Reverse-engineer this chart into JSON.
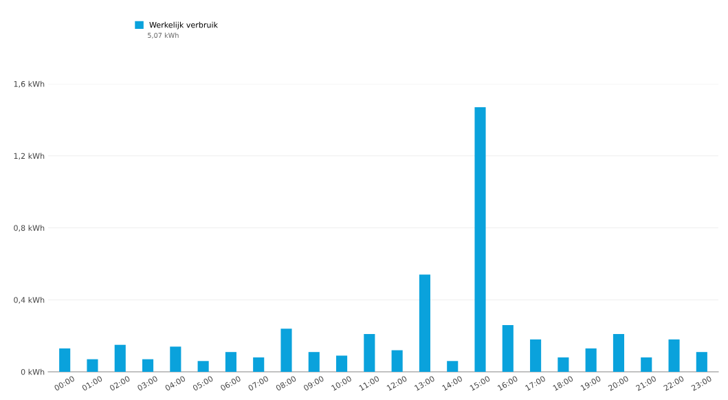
{
  "chart_data": {
    "type": "bar",
    "categories": [
      "00:00",
      "01:00",
      "02:00",
      "03:00",
      "04:00",
      "05:00",
      "06:00",
      "07:00",
      "08:00",
      "09:00",
      "10:00",
      "11:00",
      "12:00",
      "13:00",
      "14:00",
      "15:00",
      "16:00",
      "17:00",
      "18:00",
      "19:00",
      "20:00",
      "21:00",
      "22:00",
      "23:00"
    ],
    "series": [
      {
        "name": "Werkelijk verbruik",
        "color": "#0aa2dc",
        "values": [
          0.13,
          0.07,
          0.15,
          0.07,
          0.14,
          0.06,
          0.11,
          0.08,
          0.24,
          0.11,
          0.09,
          0.21,
          0.12,
          0.54,
          0.06,
          1.47,
          0.26,
          0.18,
          0.08,
          0.13,
          0.21,
          0.08,
          0.18,
          0.11
        ]
      }
    ],
    "annotations": [
      "5,07 kWh"
    ],
    "ylim": [
      0,
      1.6
    ],
    "yticks": [
      {
        "value": 0,
        "label": "0 kWh"
      },
      {
        "value": 0.4,
        "label": "0,4 kWh"
      },
      {
        "value": 0.8,
        "label": "0,8 kWh"
      },
      {
        "value": 1.2,
        "label": "1,2 kWh"
      },
      {
        "value": 1.6,
        "label": "1,6 kWh"
      }
    ],
    "grid": "y",
    "legend": "top left"
  }
}
